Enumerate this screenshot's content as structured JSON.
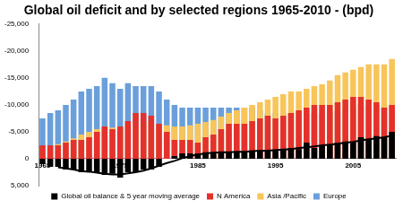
{
  "chart_data": {
    "type": "bar",
    "title": "Global oil deficit and by selected regions 1965-2010 - (bpd)",
    "categories": [
      "1965",
      null,
      null,
      null,
      null,
      null,
      null,
      null,
      null,
      null,
      "1975",
      null,
      null,
      null,
      null,
      null,
      null,
      null,
      null,
      null,
      "1985",
      null,
      null,
      null,
      null,
      null,
      null,
      null,
      null,
      null,
      "1995",
      null,
      null,
      null,
      null,
      null,
      null,
      null,
      null,
      null,
      "2005",
      null,
      null,
      null,
      null,
      null
    ],
    "series": [
      {
        "name": "Global oil balance & 5 year moving average",
        "color": "#000000",
        "values": [
          1000,
          1500,
          1500,
          2000,
          2000,
          2500,
          2500,
          2500,
          3000,
          2800,
          3500,
          2500,
          2500,
          2000,
          2000,
          1500,
          0,
          -500,
          -1000,
          -1000,
          -1000,
          -1200,
          -1200,
          -1200,
          -1300,
          -1300,
          -1300,
          -1500,
          -1500,
          -1500,
          -1500,
          -1800,
          -2000,
          -1800,
          -3000,
          -2000,
          -2500,
          -2500,
          -3000,
          -3200,
          -3000,
          -4000,
          -3500,
          -4200,
          -4000,
          -5000
        ]
      },
      {
        "type": "line",
        "color": "#000000",
        "values": [
          null,
          null,
          1600,
          1800,
          2000,
          2300,
          2400,
          2600,
          2800,
          2900,
          2900,
          2700,
          2500,
          2200,
          1800,
          1300,
          800,
          400,
          -100,
          -500,
          -800,
          -1000,
          -1100,
          -1200,
          -1200,
          -1300,
          -1300,
          -1400,
          -1500,
          -1500,
          -1600,
          -1700,
          -1800,
          -2000,
          -2100,
          -2300,
          -2500,
          -2600,
          -2800,
          -3000,
          -3100,
          -3400,
          -3600,
          -3800,
          -4000,
          -4300
        ]
      },
      {
        "name": "N America",
        "color": "#e5312b",
        "values": [
          -2500,
          -2500,
          -2500,
          -3000,
          -3500,
          -3500,
          -4000,
          -5000,
          -6000,
          -5500,
          -6000,
          -7000,
          -8500,
          -8500,
          -8000,
          -6500,
          -5000,
          -3500,
          -3500,
          -3500,
          -3000,
          -4000,
          -4500,
          -5500,
          -6500,
          -6500,
          -6500,
          -7000,
          -7500,
          -8000,
          -7500,
          -8000,
          -8500,
          -9000,
          -9500,
          -10000,
          -10000,
          -10000,
          -10500,
          -11000,
          -11500,
          -11500,
          -11000,
          -10500,
          -9500,
          -10000
        ]
      },
      {
        "name": "Asia /Pacific",
        "color": "#f8c55a",
        "values": [
          -2000,
          -2300,
          -2700,
          -3200,
          -3800,
          -4500,
          -5000,
          -5500,
          -6000,
          -5800,
          -6000,
          -6300,
          -6600,
          -6800,
          -6800,
          -6500,
          -6200,
          -6000,
          -6000,
          -6200,
          -6500,
          -6800,
          -7200,
          -7800,
          -8500,
          -9000,
          -9500,
          -10000,
          -10500,
          -11000,
          -11500,
          -12000,
          -12500,
          -12500,
          -13000,
          -13500,
          -13800,
          -14500,
          -15500,
          -16000,
          -16500,
          -17000,
          -17500,
          -17500,
          -17500,
          -18500
        ]
      },
      {
        "name": "Europe",
        "color": "#6a9fdb",
        "values": [
          -7500,
          -8500,
          -9000,
          -10000,
          -11000,
          -12500,
          -13000,
          -13500,
          -15000,
          -14000,
          -13000,
          -14000,
          -13500,
          -13500,
          -13500,
          -12500,
          -11000,
          -10000,
          -9500,
          -9500,
          -9500,
          -9500,
          -9500,
          -9500,
          -9500,
          -9500,
          -9500,
          -9500,
          -9000,
          -8500,
          -8500,
          -8500,
          -8500,
          -8500,
          -8500,
          -8500,
          -8500,
          -8500,
          -8800,
          -9000,
          -9500,
          -10000,
          -10000,
          -10000,
          -10000,
          -10000
        ]
      }
    ],
    "ylim": [
      5000,
      -25000
    ],
    "yticks": [
      {
        "value": -25000,
        "label": "-25,000"
      },
      {
        "value": -20000,
        "label": "-20,000"
      },
      {
        "value": -15000,
        "label": "-15,000"
      },
      {
        "value": -10000,
        "label": "-10,000"
      },
      {
        "value": -5000,
        "label": "-5,000"
      },
      0,
      {
        "value": 5000,
        "label": "5,000"
      }
    ],
    "grid": false,
    "legend": "bottom"
  }
}
